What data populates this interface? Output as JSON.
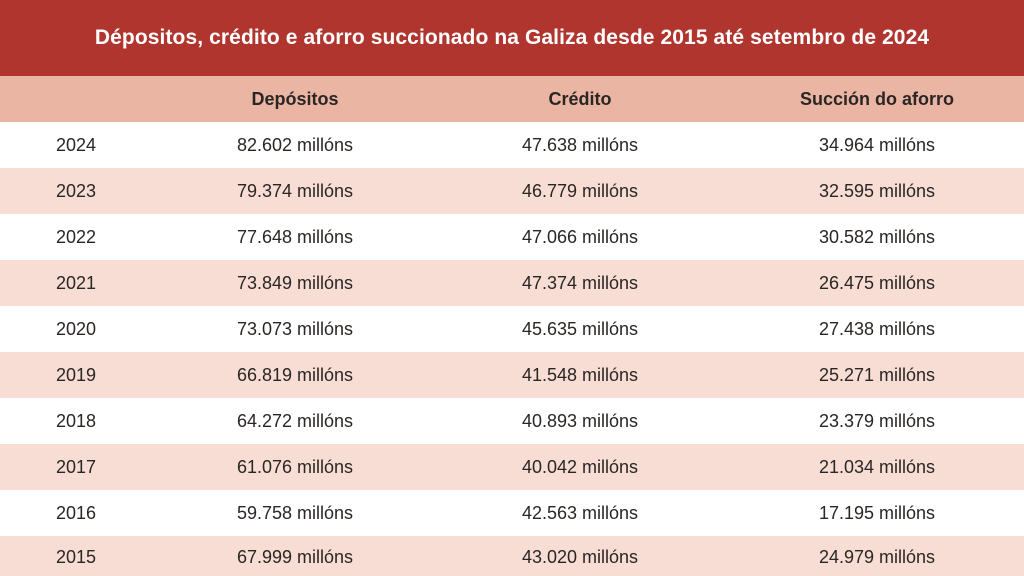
{
  "chart_data": {
    "type": "table",
    "title": "Dépositos, crédito e aforro succionado na Galiza desde 2015 até setembro de 2024",
    "columns": [
      "",
      "Depósitos",
      "Crédito",
      "Succión do aforro"
    ],
    "rows": [
      {
        "year": "2024",
        "depositos": "82.602 millóns",
        "credito": "47.638 millóns",
        "succion": "34.964 millóns"
      },
      {
        "year": "2023",
        "depositos": "79.374 millóns",
        "credito": "46.779 millóns",
        "succion": "32.595 millóns"
      },
      {
        "year": "2022",
        "depositos": "77.648 millóns",
        "credito": "47.066 millóns",
        "succion": "30.582 millóns"
      },
      {
        "year": "2021",
        "depositos": "73.849 millóns",
        "credito": "47.374 millóns",
        "succion": "26.475 millóns"
      },
      {
        "year": "2020",
        "depositos": "73.073 millóns",
        "credito": "45.635 millóns",
        "succion": "27.438 millóns"
      },
      {
        "year": "2019",
        "depositos": "66.819 millóns",
        "credito": "41.548 millóns",
        "succion": "25.271 millóns"
      },
      {
        "year": "2018",
        "depositos": "64.272 millóns",
        "credito": "40.893 millóns",
        "succion": "23.379 millóns"
      },
      {
        "year": "2017",
        "depositos": "61.076 millóns",
        "credito": "40.042 millóns",
        "succion": "21.034 millóns"
      },
      {
        "year": "2016",
        "depositos": "59.758 millóns",
        "credito": "42.563 millóns",
        "succion": "17.195 millóns"
      },
      {
        "year": "2015",
        "depositos": "67.999 millóns",
        "credito": "43.020 millóns",
        "succion": "24.979 millóns"
      }
    ]
  },
  "colors": {
    "title_bar": "#b0352e",
    "header_row": "#ebb5a4",
    "row_alt": "#f7ddd4",
    "row_base": "#ffffff"
  }
}
